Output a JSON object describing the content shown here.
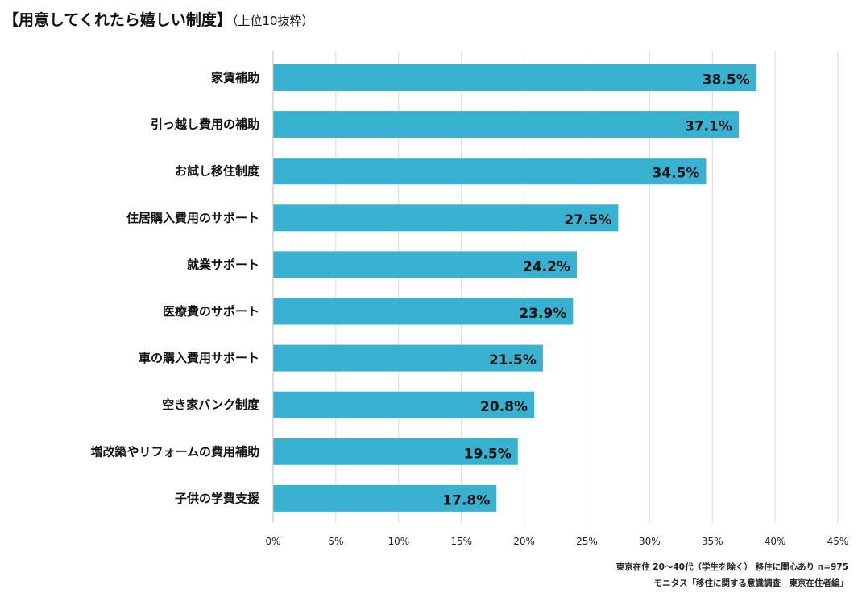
{
  "chart_data": {
    "type": "bar",
    "orientation": "horizontal",
    "title": "【用意してくれたら嬉しい制度】",
    "subtitle": "（上位10抜粋）",
    "categories": [
      "家賃補助",
      "引っ越し費用の補助",
      "お試し移住制度",
      "住居購入費用のサポート",
      "就業サポート",
      "医療費のサポート",
      "車の購入費用サポート",
      "空き家バンク制度",
      "増改築やリフォームの費用補助",
      "子供の学費支援"
    ],
    "values": [
      38.5,
      37.1,
      34.5,
      27.5,
      24.2,
      23.9,
      21.5,
      20.8,
      19.5,
      17.8
    ],
    "value_labels": [
      "38.5%",
      "37.1%",
      "34.5%",
      "27.5%",
      "24.2%",
      "23.9%",
      "21.5%",
      "20.8%",
      "19.5%",
      "17.8%"
    ],
    "xlim": [
      0,
      45
    ],
    "x_ticks": [
      "0%",
      "5%",
      "10%",
      "15%",
      "20%",
      "25%",
      "30%",
      "35%",
      "40%",
      "45%"
    ],
    "xlabel": "",
    "ylabel": "",
    "grid": true,
    "bar_color": "#38b2d0"
  },
  "notes": {
    "sample": "東京在住 20〜40代（学生を除く） 移住に関心あり n=975",
    "source": "モニタス「移住に関する意識調査　東京在住者編」"
  }
}
